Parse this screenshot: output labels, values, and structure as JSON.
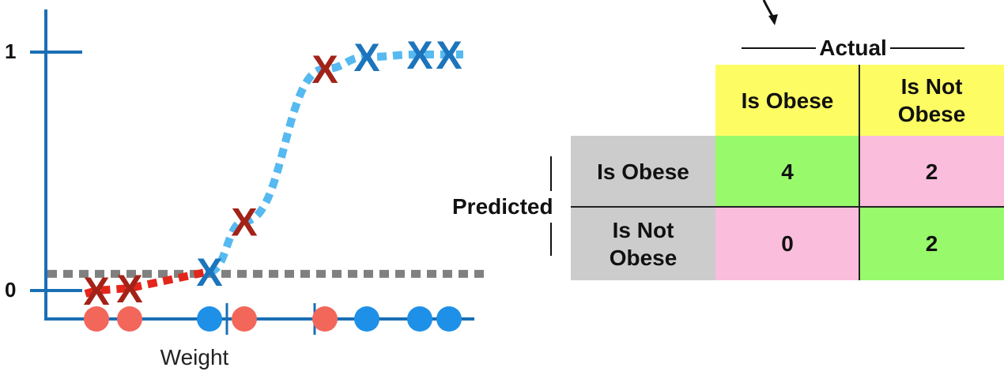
{
  "chart_data": {
    "type": "scatter",
    "xlabel": "Weight",
    "y_ticks": [
      "1",
      "0"
    ],
    "threshold": 0.07,
    "curve": "logistic",
    "samples": [
      {
        "class": "not-obese",
        "weight": 1,
        "predicted_probability": 0.0
      },
      {
        "class": "not-obese",
        "weight": 2,
        "predicted_probability": 0.01
      },
      {
        "class": "obese",
        "weight": 3,
        "predicted_probability": 0.08
      },
      {
        "class": "not-obese",
        "weight": 4,
        "predicted_probability": 0.29
      },
      {
        "class": "not-obese",
        "weight": 5,
        "predicted_probability": 0.93
      },
      {
        "class": "obese",
        "weight": 6,
        "predicted_probability": 0.98
      },
      {
        "class": "obese",
        "weight": 7,
        "predicted_probability": 0.99
      },
      {
        "class": "obese",
        "weight": 8,
        "predicted_probability": 0.99
      }
    ],
    "colors": {
      "obese": "#1c75bc",
      "not_obese": "#a32217",
      "dot_obese": "#1e90e8",
      "dot_not_obese": "#f2675a",
      "curve_low": "#e3261b",
      "curve_high": "#56b9f0",
      "threshold": "#808080",
      "axis": "#1a6fb4"
    }
  },
  "matrix": {
    "actual_label": "Actual",
    "predicted_label": "Predicted",
    "col_headers": [
      "Is Obese",
      "Is Not Obese"
    ],
    "row_headers": [
      "Is Obese",
      "Is Not Obese"
    ],
    "values": [
      [
        "4",
        "2"
      ],
      [
        "0",
        "2"
      ]
    ],
    "mark": "X",
    "colors": {
      "header": "#fdfd63",
      "row_header": "#cccccc",
      "correct": "#98f96b",
      "incorrect": "#fbbddc"
    }
  }
}
